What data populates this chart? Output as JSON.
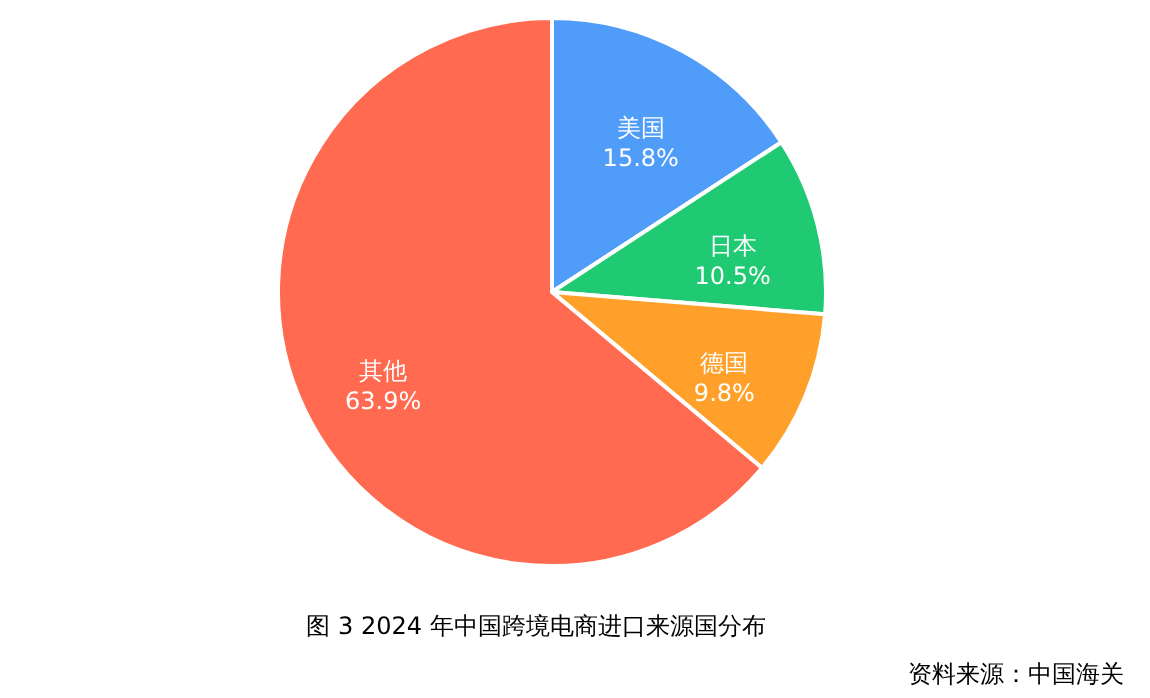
{
  "chart_data": {
    "type": "pie",
    "title": "图 3 2024 年中国跨境电商进口来源国分布",
    "categories": [
      "美国",
      "日本",
      "德国",
      "其他"
    ],
    "values": [
      15.8,
      10.5,
      9.8,
      63.9
    ],
    "value_labels": [
      "15.8%",
      "10.5%",
      "9.8%",
      "63.9%"
    ],
    "colors": [
      "#4f9df8",
      "#1fca72",
      "#ffa02a",
      "#ff6a50"
    ],
    "annotations": [
      "资料来源：中国海关"
    ]
  }
}
